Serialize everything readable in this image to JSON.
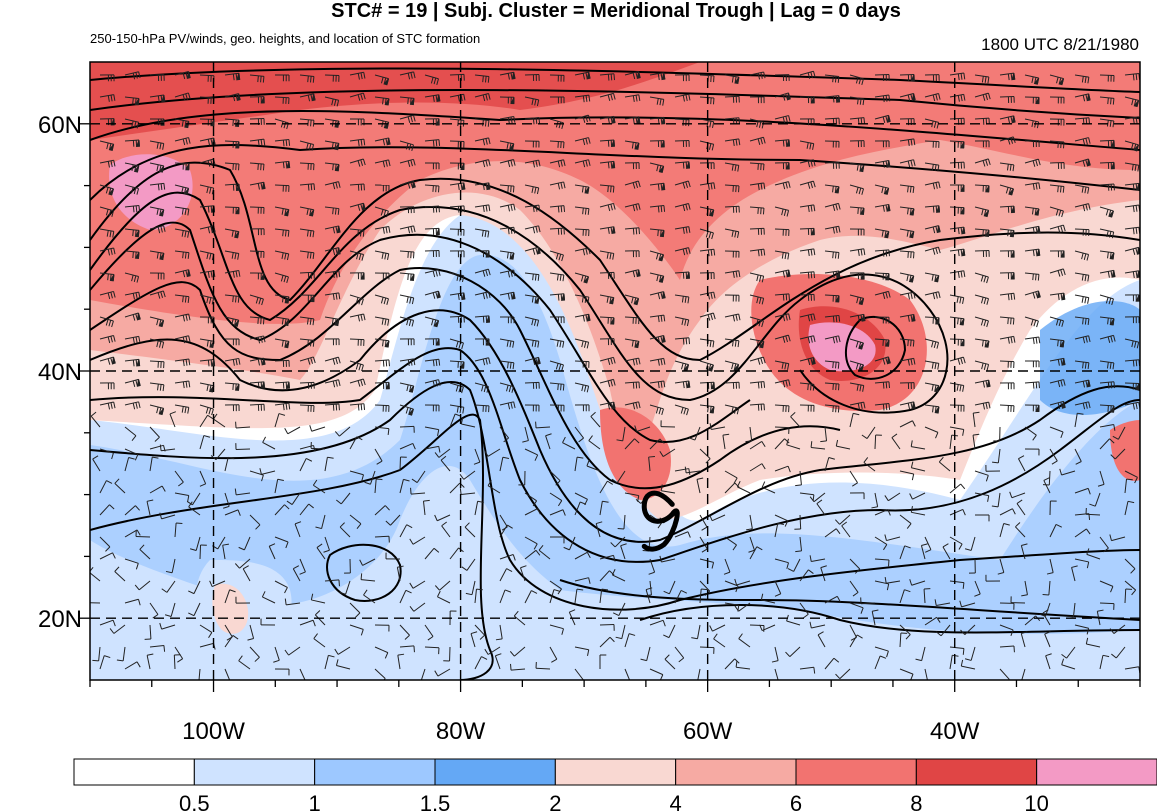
{
  "title": "STC# = 19 | Subj. Cluster = Meridional Trough | Lag = 0 days",
  "subtitle": "250-150-hPa PV/winds, geo. heights, and location of STC formation",
  "datetime": "1800 UTC  8/21/1980",
  "map": {
    "lon_range": [
      -110,
      -25
    ],
    "lat_range": [
      15,
      65
    ],
    "lat_ticks": [
      {
        "value": 20,
        "label": "20N"
      },
      {
        "value": 40,
        "label": "40N"
      },
      {
        "value": 60,
        "label": "60N"
      }
    ],
    "lon_ticks": [
      {
        "value": -100,
        "label": "100W"
      },
      {
        "value": -80,
        "label": "80W"
      },
      {
        "value": -60,
        "label": "60W"
      },
      {
        "value": -40,
        "label": "40W"
      }
    ],
    "stc_marker": {
      "symbol": "tropical-cyclone-symbol",
      "lon": -64,
      "lat": 28
    }
  },
  "colorbar": {
    "labels": [
      "0.5",
      "1",
      "1.5",
      "2",
      "4",
      "6",
      "8",
      "10"
    ],
    "colors": [
      "#ffffff",
      "#cfe3ff",
      "#9dc8ff",
      "#64a8f5",
      "#f9d8d2",
      "#f6aaa3",
      "#f27370",
      "#e04545",
      "#f39ac5"
    ]
  }
}
